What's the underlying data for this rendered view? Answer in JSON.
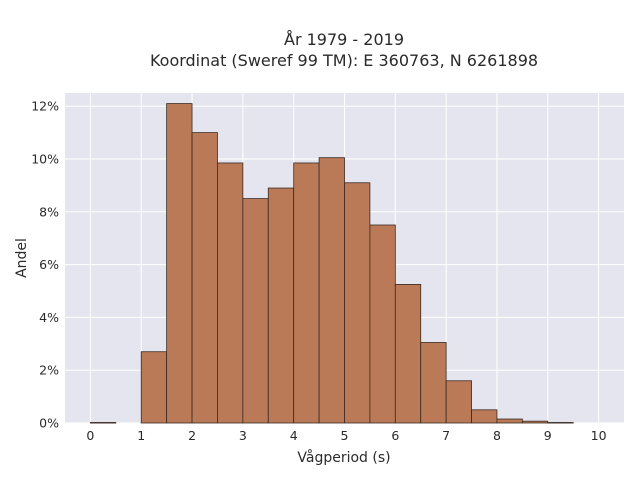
{
  "chart_data": {
    "type": "bar",
    "title_line1": "År 1979 - 2019",
    "title_line2": "Koordinat (Sweref 99 TM): E 360763, N 6261898",
    "xlabel": "Vågperiod (s)",
    "ylabel": "Andel",
    "xlim": [
      -0.5,
      10.5
    ],
    "ylim": [
      0,
      12.5
    ],
    "x_ticks": [
      0,
      1,
      2,
      3,
      4,
      5,
      6,
      7,
      8,
      9,
      10
    ],
    "y_ticks": [
      0,
      2,
      4,
      6,
      8,
      10,
      12
    ],
    "y_tick_labels": [
      "0%",
      "2%",
      "4%",
      "6%",
      "8%",
      "10%",
      "12%"
    ],
    "bin_width": 0.5,
    "bins": [
      {
        "x0": 0.0,
        "value": 0.02
      },
      {
        "x0": 0.5,
        "value": 0.0
      },
      {
        "x0": 1.0,
        "value": 2.7
      },
      {
        "x0": 1.5,
        "value": 12.1
      },
      {
        "x0": 2.0,
        "value": 11.0
      },
      {
        "x0": 2.5,
        "value": 9.85
      },
      {
        "x0": 3.0,
        "value": 8.5
      },
      {
        "x0": 3.5,
        "value": 8.9
      },
      {
        "x0": 4.0,
        "value": 9.85
      },
      {
        "x0": 4.5,
        "value": 10.05
      },
      {
        "x0": 5.0,
        "value": 9.1
      },
      {
        "x0": 5.5,
        "value": 7.5
      },
      {
        "x0": 6.0,
        "value": 5.25
      },
      {
        "x0": 6.5,
        "value": 3.05
      },
      {
        "x0": 7.0,
        "value": 1.6
      },
      {
        "x0": 7.5,
        "value": 0.5
      },
      {
        "x0": 8.0,
        "value": 0.15
      },
      {
        "x0": 8.5,
        "value": 0.07
      },
      {
        "x0": 9.0,
        "value": 0.02
      }
    ],
    "grid": true,
    "colors": {
      "bar_fill": "#bb7a57",
      "bar_stroke": "#3a2a22",
      "plot_background": "#e5e5ef",
      "grid": "#ffffff"
    }
  }
}
